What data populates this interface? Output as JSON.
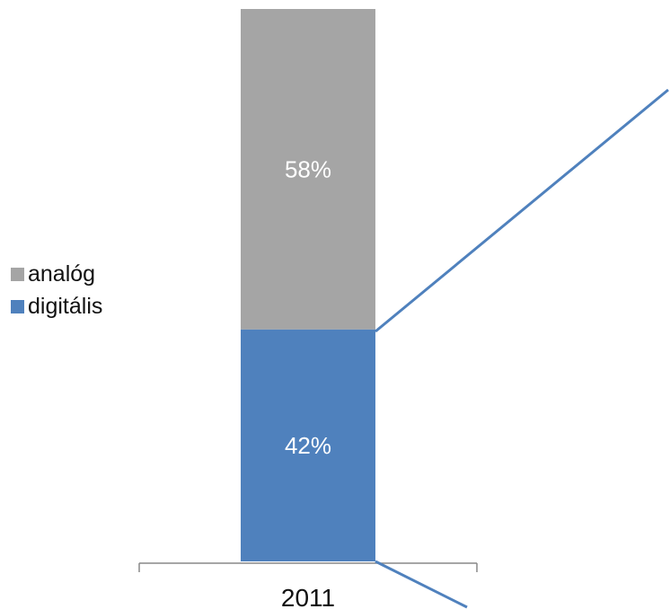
{
  "chart_data": {
    "type": "bar",
    "stacked": true,
    "categories": [
      "2011"
    ],
    "series": [
      {
        "name": "digitális",
        "values": [
          42
        ],
        "label": "42%",
        "color": "#4f81bd"
      },
      {
        "name": "analóg",
        "values": [
          58
        ],
        "label": "58%",
        "color": "#a5a5a5"
      }
    ],
    "ylim": [
      0,
      100
    ],
    "unit": "%",
    "grid": false,
    "legend_position": "left",
    "title": "",
    "xlabel": "",
    "ylabel": ""
  }
}
